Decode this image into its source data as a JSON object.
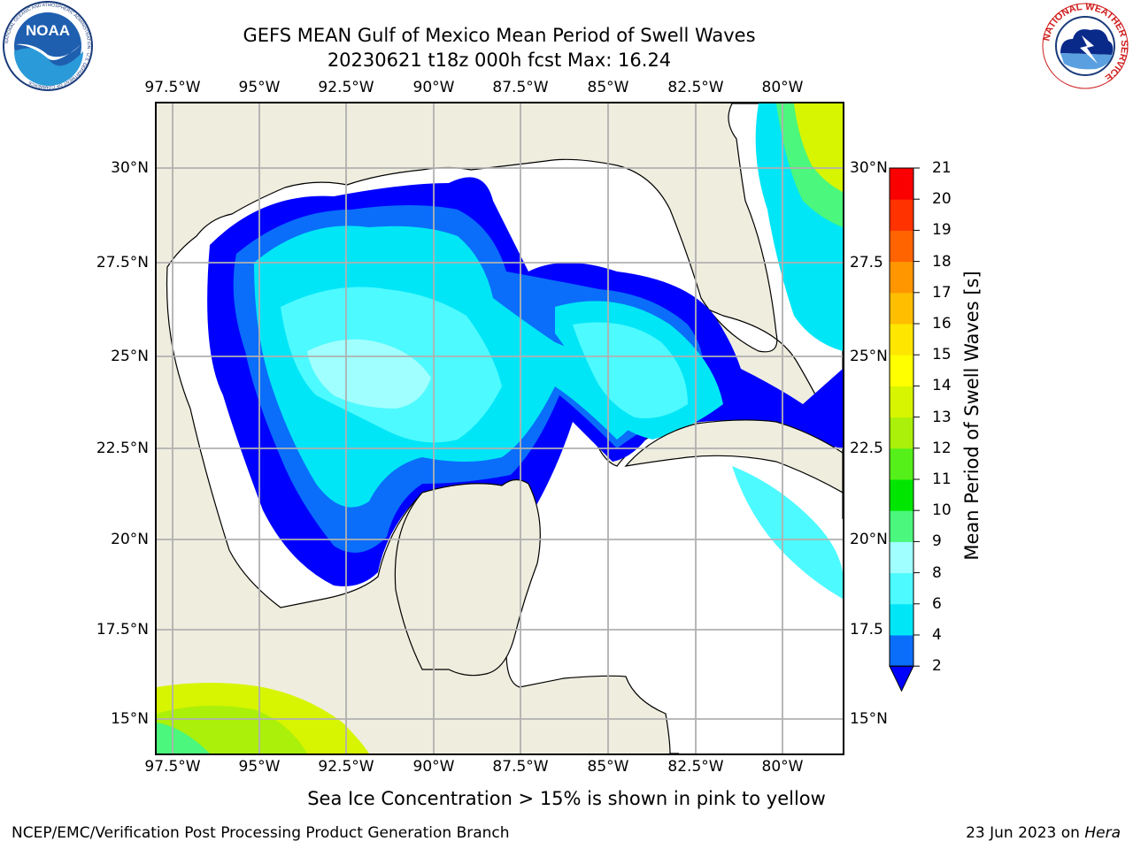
{
  "header": {
    "title_line1": "GEFS MEAN Gulf of Mexico Mean Period of Swell Waves",
    "title_line2": "20230621 t18z 000h fcst   Max: 16.24"
  },
  "logos": {
    "noaa_ring_text": "NATIONAL OCEANIC AND ATMOSPHERIC ADMINISTRATION · U.S. DEPARTMENT OF COMMERCE",
    "noaa_wordmark": "NOAA",
    "nws_ring_text": "NATIONAL WEATHER SERVICE"
  },
  "map": {
    "projection": "plate carree",
    "extent_lon": [
      -98,
      -79.2
    ],
    "extent_lat": [
      14,
      31.8
    ],
    "gridlines": true,
    "land_color": "#efedde",
    "no_data_color": "#ffffff",
    "lon_ticks": [
      {
        "lon": -97.5,
        "label": "97.5°W"
      },
      {
        "lon": -95,
        "label": "95°W"
      },
      {
        "lon": -92.5,
        "label": "92.5°W"
      },
      {
        "lon": -90,
        "label": "90°W"
      },
      {
        "lon": -87.5,
        "label": "87.5°W"
      },
      {
        "lon": -85,
        "label": "85°W"
      },
      {
        "lon": -82.5,
        "label": "82.5°W"
      },
      {
        "lon": -80,
        "label": "80°W"
      }
    ],
    "lat_ticks_left": [
      {
        "lat": 30,
        "label": "30°N"
      },
      {
        "lat": 27.5,
        "label": "27.5°N"
      },
      {
        "lat": 25,
        "label": "25°N"
      },
      {
        "lat": 22.5,
        "label": "22.5°N"
      },
      {
        "lat": 20,
        "label": "20°N"
      },
      {
        "lat": 17.5,
        "label": "17.5°N"
      },
      {
        "lat": 15,
        "label": "15°N"
      }
    ],
    "lat_ticks_right": [
      {
        "lat": 30,
        "label": "30°N"
      },
      {
        "lat": 27.5,
        "label": "27.5"
      },
      {
        "lat": 25,
        "label": "25°N"
      },
      {
        "lat": 22.5,
        "label": "22.5"
      },
      {
        "lat": 20,
        "label": "20°N"
      },
      {
        "lat": 17.5,
        "label": "17.5"
      },
      {
        "lat": 15,
        "label": "15°N"
      }
    ]
  },
  "colorbar": {
    "label": "Mean Period of Swell Waves [s]",
    "levels": [
      2,
      4,
      6,
      8,
      9,
      10,
      11,
      12,
      13,
      14,
      15,
      16,
      17,
      18,
      19,
      20,
      21
    ],
    "colors": [
      "#0a6efa",
      "#00e6f7",
      "#4dfaff",
      "#a0ffff",
      "#4bf77c",
      "#00e600",
      "#55f01a",
      "#aaf00a",
      "#d7f500",
      "#ffff00",
      "#ffe600",
      "#ffbe00",
      "#ff9600",
      "#ff6400",
      "#ff3200",
      "#fa0000"
    ],
    "under_color": "#0000ff",
    "extend": "min"
  },
  "footer": {
    "sea_ice_note": "Sea Ice Concentration > 15% is shown in pink to yellow",
    "branch": "NCEP/EMC/Verification Post Processing Product Generation Branch",
    "date": "23 Jun 2023 on",
    "machine": "Hera"
  }
}
